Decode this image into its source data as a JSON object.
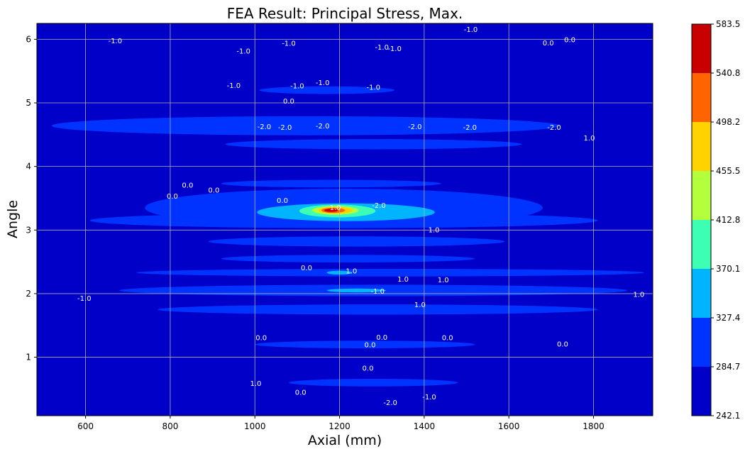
{
  "chart_data": {
    "type": "contour",
    "title": "FEA Result: Principal Stress, Max.",
    "xlabel": "Axial (mm)",
    "ylabel": "Angle",
    "xlim": [
      485,
      1940
    ],
    "ylim": [
      0.08,
      6.25
    ],
    "x_ticks": [
      600,
      800,
      1000,
      1200,
      1400,
      1600,
      1800
    ],
    "y_ticks": [
      1,
      2,
      3,
      4,
      5,
      6
    ],
    "grid": true,
    "colorbar": {
      "levels": [
        242.1,
        284.7,
        327.4,
        370.1,
        412.8,
        455.5,
        498.2,
        540.8,
        583.5
      ],
      "colors": [
        "#0000c8",
        "#0033ff",
        "#00b4ff",
        "#3cffb4",
        "#b4ff3c",
        "#ffd200",
        "#ff6400",
        "#c80000"
      ]
    },
    "filled_regions": [
      {
        "level": 1,
        "cx": 1210,
        "cy": 3.35,
        "rx": 470,
        "ry": 0.3
      },
      {
        "level": 1,
        "cx": 1210,
        "cy": 3.15,
        "rx": 600,
        "ry": 0.12
      },
      {
        "level": 1,
        "cx": 1120,
        "cy": 4.64,
        "rx": 600,
        "ry": 0.15
      },
      {
        "level": 1,
        "cx": 1280,
        "cy": 4.35,
        "rx": 350,
        "ry": 0.08
      },
      {
        "level": 1,
        "cx": 1170,
        "cy": 5.2,
        "rx": 160,
        "ry": 0.06
      },
      {
        "level": 1,
        "cx": 1240,
        "cy": 2.82,
        "rx": 350,
        "ry": 0.08
      },
      {
        "level": 1,
        "cx": 1220,
        "cy": 2.55,
        "rx": 300,
        "ry": 0.06
      },
      {
        "level": 1,
        "cx": 1320,
        "cy": 2.33,
        "rx": 600,
        "ry": 0.06
      },
      {
        "level": 1,
        "cx": 1280,
        "cy": 2.05,
        "rx": 600,
        "ry": 0.09
      },
      {
        "level": 1,
        "cx": 1290,
        "cy": 1.75,
        "rx": 520,
        "ry": 0.08
      },
      {
        "level": 1,
        "cx": 1260,
        "cy": 1.2,
        "rx": 260,
        "ry": 0.06
      },
      {
        "level": 1,
        "cx": 1280,
        "cy": 0.6,
        "rx": 200,
        "ry": 0.06
      },
      {
        "level": 1,
        "cx": 1180,
        "cy": 3.73,
        "rx": 260,
        "ry": 0.06
      },
      {
        "level": 2,
        "cx": 1215,
        "cy": 3.28,
        "rx": 210,
        "ry": 0.14
      },
      {
        "level": 2,
        "cx": 1240,
        "cy": 2.05,
        "rx": 70,
        "ry": 0.03
      },
      {
        "level": 2,
        "cx": 1200,
        "cy": 2.33,
        "rx": 30,
        "ry": 0.03
      },
      {
        "level": 3,
        "cx": 1195,
        "cy": 3.3,
        "rx": 90,
        "ry": 0.1
      },
      {
        "level": 4,
        "cx": 1190,
        "cy": 3.31,
        "rx": 55,
        "ry": 0.07
      },
      {
        "level": 5,
        "cx": 1190,
        "cy": 3.31,
        "rx": 40,
        "ry": 0.055
      },
      {
        "level": 6,
        "cx": 1185,
        "cy": 3.31,
        "rx": 28,
        "ry": 0.04
      },
      {
        "level": 7,
        "cx": 1180,
        "cy": 3.31,
        "rx": 16,
        "ry": 0.025
      }
    ],
    "contour_labels": [
      {
        "text": "-1.0",
        "x": 1510,
        "y": 6.15
      },
      {
        "text": "-1.0",
        "x": 670,
        "y": 5.97
      },
      {
        "text": "0.0",
        "x": 1693,
        "y": 5.94
      },
      {
        "text": "0.0",
        "x": 1744,
        "y": 5.99
      },
      {
        "text": "-1.0",
        "x": 973,
        "y": 5.81
      },
      {
        "text": "-1.0",
        "x": 1330,
        "y": 5.85
      },
      {
        "text": "-1.0",
        "x": 1080,
        "y": 5.93
      },
      {
        "text": "-1.0",
        "x": 1300,
        "y": 5.87
      },
      {
        "text": "-1.0",
        "x": 950,
        "y": 5.27
      },
      {
        "text": "-1.0",
        "x": 1100,
        "y": 5.26
      },
      {
        "text": "-1.0",
        "x": 1160,
        "y": 5.31
      },
      {
        "text": "-1.0",
        "x": 1280,
        "y": 5.24
      },
      {
        "text": "0.0",
        "x": 1080,
        "y": 5.02
      },
      {
        "text": "-2.0",
        "x": 1022,
        "y": 4.62
      },
      {
        "text": "-2.0",
        "x": 1071,
        "y": 4.61
      },
      {
        "text": "-2.0",
        "x": 1160,
        "y": 4.63
      },
      {
        "text": "-2.0",
        "x": 1378,
        "y": 4.62
      },
      {
        "text": "-2.0",
        "x": 1508,
        "y": 4.61
      },
      {
        "text": "-2.0",
        "x": 1707,
        "y": 4.61
      },
      {
        "text": "1.0",
        "x": 1790,
        "y": 4.44
      },
      {
        "text": "0.0",
        "x": 841,
        "y": 3.7
      },
      {
        "text": "0.0",
        "x": 805,
        "y": 3.53
      },
      {
        "text": "0.0",
        "x": 903,
        "y": 3.62
      },
      {
        "text": "0.0",
        "x": 1065,
        "y": 3.46
      },
      {
        "text": "-2.0",
        "x": 1293,
        "y": 3.38
      },
      {
        "text": "1.0",
        "x": 1190,
        "y": 3.35
      },
      {
        "text": "1.0",
        "x": 1423,
        "y": 3.0
      },
      {
        "text": "0.0",
        "x": 1122,
        "y": 2.4
      },
      {
        "text": "-1.0",
        "x": 1290,
        "y": 2.03
      },
      {
        "text": "1.0",
        "x": 1350,
        "y": 2.22
      },
      {
        "text": "1.0",
        "x": 1445,
        "y": 2.21
      },
      {
        "text": "1.0",
        "x": 1228,
        "y": 2.35
      },
      {
        "text": "-1.0",
        "x": 597,
        "y": 1.92
      },
      {
        "text": "1.0",
        "x": 1907,
        "y": 1.98
      },
      {
        "text": "1.0",
        "x": 1390,
        "y": 1.82
      },
      {
        "text": "0.0",
        "x": 1015,
        "y": 1.3
      },
      {
        "text": "0.0",
        "x": 1300,
        "y": 1.31
      },
      {
        "text": "0.0",
        "x": 1455,
        "y": 1.3
      },
      {
        "text": "0.0",
        "x": 1272,
        "y": 1.19
      },
      {
        "text": "0.0",
        "x": 1727,
        "y": 1.2
      },
      {
        "text": "0.0",
        "x": 1267,
        "y": 0.82
      },
      {
        "text": "1.0",
        "x": 1002,
        "y": 0.58
      },
      {
        "text": "0.0",
        "x": 1108,
        "y": 0.44
      },
      {
        "text": "-1.0",
        "x": 1412,
        "y": 0.37
      },
      {
        "text": "-2.0",
        "x": 1320,
        "y": 0.28
      }
    ]
  }
}
